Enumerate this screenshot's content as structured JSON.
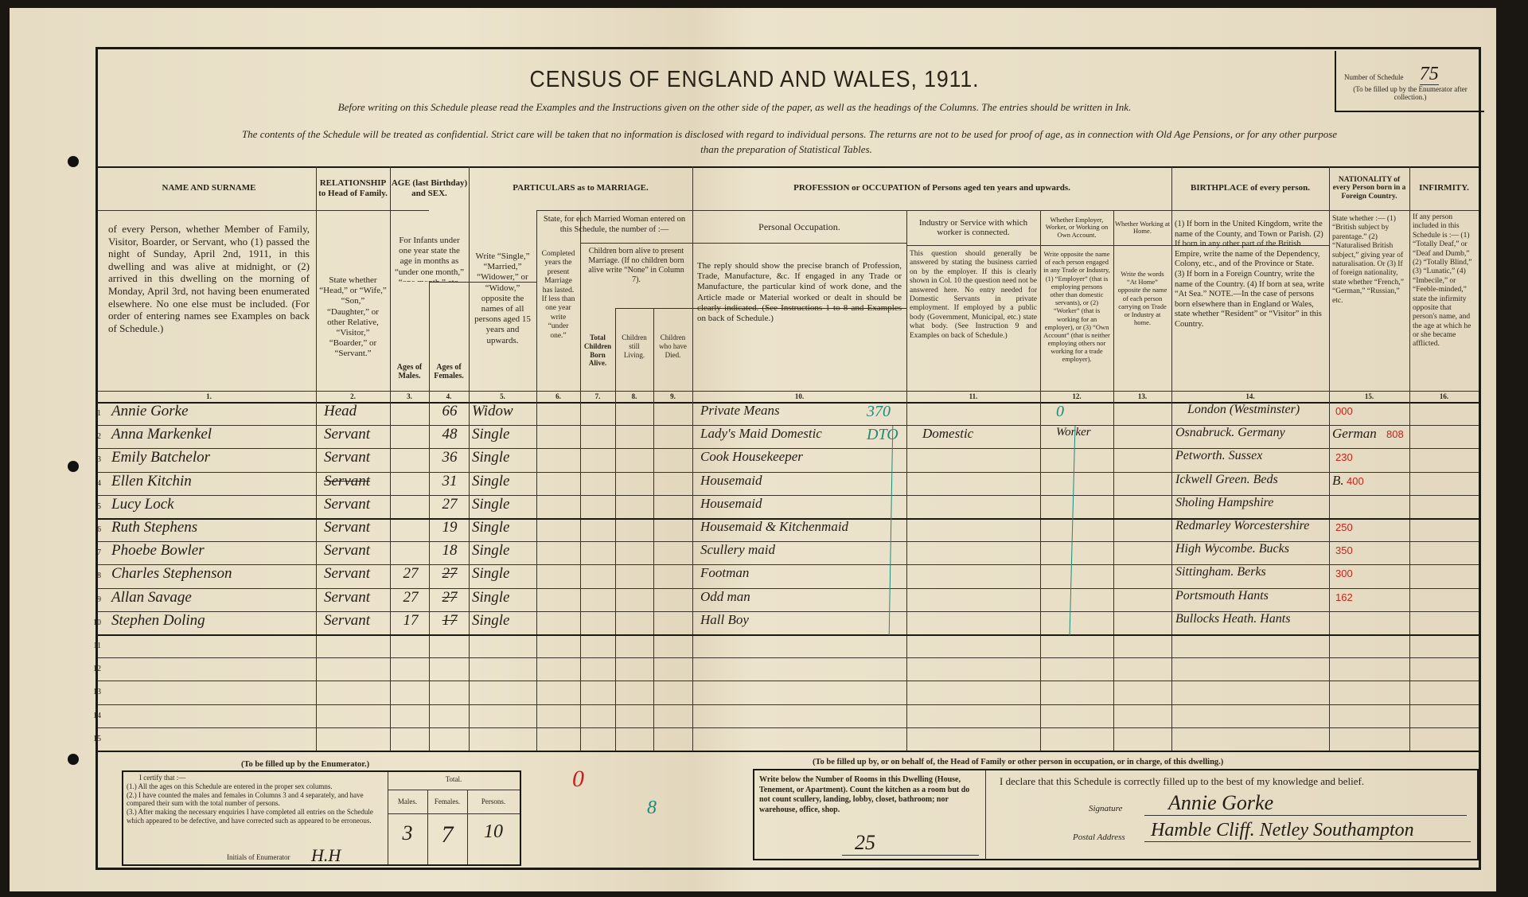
{
  "header": {
    "title": "CENSUS OF ENGLAND AND WALES, 1911.",
    "instruction_line": "Before writing on this Schedule please read the Examples and the Instructions given on the other side of the paper, as well as the headings of the Columns. The entries should be written in Ink.",
    "confidential_line_1": "The contents of the Schedule will be treated as confidential. Strict care will be taken that no information is disclosed with regard to individual persons. The returns are not to be used for proof of age, as in connection with Old Age Pensions, or for any other purpose",
    "confidential_line_2": "than the preparation of Statistical Tables.",
    "schedule_number_label": "Number of Schedule",
    "schedule_number": "75",
    "schedule_number_note": "(To be filled up by the Enumerator after collection.)"
  },
  "columns": {
    "name": {
      "head": "NAME AND SURNAME",
      "instr": "of every Person, whether Member of Family, Visitor, Boarder, or Servant, who (1) passed the night of Sunday, April 2nd, 1911, in this dwelling and was alive at midnight, or (2) arrived in this dwelling on the morning of Monday, April 3rd, not having been enumerated elsewhere. No one else must be included. (For order of entering names see Examples on back of Schedule.)",
      "num": "1."
    },
    "relationship": {
      "head": "RELATIONSHIP to Head of Family.",
      "instr": "State whether “Head,” or “Wife,” “Son,” “Daughter,” or other Relative, “Visitor,” “Boarder,” or “Servant.”",
      "num": "2."
    },
    "age": {
      "head": "AGE (last Birthday) and SEX.",
      "instr": "For Infants under one year state the age in months as “under one month,” “one month,” etc."
    },
    "males": {
      "head": "Ages of Males.",
      "num": "3."
    },
    "females": {
      "head": "Ages of Females.",
      "num": "4."
    },
    "marriage": {
      "head": "PARTICULARS as to MARRIAGE."
    },
    "condition": {
      "instr": "Write “Single,” “Married,” “Widower,” or “Widow,” opposite the names of all persons aged 15 years and upwards.",
      "num": "5."
    },
    "married_woman": {
      "instr": "State, for each Married Woman entered on this Schedule, the number of :—"
    },
    "years_married": {
      "instr": "Completed years the present Marriage has lasted. If less than one year write “under one.”",
      "num": "6."
    },
    "children_born": {
      "instr": "Children born alive to present Marriage. (If no children born alive write “None” in Column 7)."
    },
    "total_children": {
      "instr": "Total Children Born Alive.",
      "num": "7."
    },
    "children_living": {
      "instr": "Children still Living.",
      "num": "8."
    },
    "children_died": {
      "instr": "Children who have Died.",
      "num": "9."
    },
    "profession": {
      "head": "PROFESSION or OCCUPATION of Persons aged ten years and upwards."
    },
    "occupation": {
      "head": "Personal Occupation.",
      "instr": "The reply should show the precise branch of Profession, Trade, Manufacture, &c. If engaged in any Trade or Manufacture, the particular kind of work done, and the Article made or Material worked or dealt in should be clearly indicated. (See Instructions 1 to 8 and Examples on back of Schedule.)",
      "num": "10."
    },
    "industry": {
      "head": "Industry or Service with which worker is connected.",
      "instr": "This question should generally be answered by stating the business carried on by the employer. If this is clearly shown in Col. 10 the question need not be answered here. No entry needed for Domestic Servants in private employment. If employed by a public body (Government, Municipal, etc.) state what body. (See Instruction 9 and Examples on back of Schedule.)",
      "num": "11."
    },
    "employer": {
      "head": "Whether Employer, Worker, or Working on Own Account.",
      "instr": "Write opposite the name of each person engaged in any Trade or Industry, (1) “Employer” (that is employing persons other than domestic servants), or (2) “Worker” (that is working for an employer), or (3) “Own Account” (that is neither employing others nor working for a trade employer).",
      "num": "12."
    },
    "at_home": {
      "head": "Whether Working at Home.",
      "instr": "Write the words “At Home” opposite the name of each person carrying on Trade or Industry at home.",
      "num": "13."
    },
    "birthplace": {
      "head": "BIRTHPLACE of every person.",
      "instr": "(1) If born in the United Kingdom, write the name of the County, and Town or Parish. (2) If born in any other part of the British Empire, write the name of the Dependency, Colony, etc., and of the Province or State. (3) If born in a Foreign Country, write the name of the Country. (4) If born at sea, write “At Sea.” NOTE.—In the case of persons born elsewhere than in England or Wales, state whether “Resident” or “Visitor” in this Country.",
      "num": "14."
    },
    "nationality": {
      "head": "NATIONALITY of every Person born in a Foreign Country.",
      "instr": "State whether :— (1) “British subject by parentage.” (2) “Naturalised British subject,” giving year of naturalisation. Or (3) If of foreign nationality, state whether “French,” “German,” “Russian,” etc.",
      "num": "15."
    },
    "infirmity": {
      "head": "INFIRMITY.",
      "instr": "If any person included in this Schedule is :— (1) “Totally Deaf,” or “Deaf and Dumb,” (2) “Totally Blind,” (3) “Lunatic,” (4) “Imbecile,” or “Feeble-minded,” state the infirmity opposite that person's name, and the age at which he or she became afflicted.",
      "num": "16."
    }
  },
  "rows": [
    {
      "n": "1",
      "name": "Annie Gorke",
      "rel": "Head",
      "male": "",
      "female": "66",
      "cond": "Widow",
      "occ": "Private Means",
      "occ_code": "370",
      "ind": "",
      "emp": "0",
      "birth": "London (Westminster)",
      "nat": "",
      "code": "000"
    },
    {
      "n": "2",
      "name": "Anna Markenkel",
      "rel": "Servant",
      "male": "",
      "female": "48",
      "cond": "Single",
      "occ": "Lady's Maid Domestic",
      "occ_code": "DTO",
      "ind": "Domestic",
      "emp": "Worker",
      "birth": "Osnabruck. Germany",
      "nat": "German",
      "code": "808"
    },
    {
      "n": "3",
      "name": "Emily Batchelor",
      "rel": "Servant",
      "male": "",
      "female": "36",
      "cond": "Single",
      "occ": "Cook Housekeeper",
      "occ_code": "",
      "ind": "",
      "emp": "",
      "birth": "Petworth. Sussex",
      "nat": "",
      "code": "230"
    },
    {
      "n": "4",
      "name": "Ellen Kitchin",
      "rel": "Servant",
      "rel_struck": true,
      "male": "",
      "female": "31",
      "cond": "Single",
      "occ": "Housemaid",
      "occ_code": "",
      "ind": "",
      "emp": "",
      "birth": "Ickwell Green. Beds",
      "nat": "B.",
      "code": "400"
    },
    {
      "n": "5",
      "name": "Lucy Lock",
      "rel": "Servant",
      "male": "",
      "female": "27",
      "cond": "Single",
      "occ": "Housemaid",
      "occ_code": "",
      "ind": "",
      "emp": "",
      "birth": "Sholing Hampshire",
      "nat": "",
      "code": ""
    },
    {
      "n": "6",
      "name": "Ruth Stephens",
      "rel": "Servant",
      "male": "",
      "female": "19",
      "cond": "Single",
      "occ": "Housemaid & Kitchenmaid",
      "occ_code": "",
      "ind": "",
      "emp": "",
      "birth": "Redmarley Worcestershire",
      "nat": "",
      "code": "250"
    },
    {
      "n": "7",
      "name": "Phoebe Bowler",
      "rel": "Servant",
      "male": "",
      "female": "18",
      "cond": "Single",
      "occ": "Scullery maid",
      "occ_code": "",
      "ind": "",
      "emp": "",
      "birth": "High Wycombe. Bucks",
      "nat": "",
      "code": "350"
    },
    {
      "n": "8",
      "name": "Charles Stephenson",
      "rel": "Servant",
      "male": "27",
      "female": "27",
      "female_struck": true,
      "cond": "Single",
      "occ": "Footman",
      "occ_code": "",
      "ind": "",
      "emp": "",
      "birth": "Sittingham. Berks",
      "nat": "",
      "code": "300"
    },
    {
      "n": "9",
      "name": "Allan Savage",
      "rel": "Servant",
      "male": "27",
      "female": "27",
      "female_struck": true,
      "cond": "Single",
      "occ": "Odd man",
      "occ_code": "",
      "ind": "",
      "emp": "",
      "birth": "Portsmouth Hants",
      "nat": "",
      "code": "162"
    },
    {
      "n": "10",
      "name": "Stephen Doling",
      "rel": "Servant",
      "male": "17",
      "female": "17",
      "female_struck": true,
      "cond": "Single",
      "occ": "Hall Boy",
      "occ_code": "",
      "ind": "",
      "emp": "",
      "birth": "Bullocks Heath. Hants",
      "nat": "",
      "code": ""
    },
    {
      "n": "11"
    },
    {
      "n": "12"
    },
    {
      "n": "13"
    },
    {
      "n": "14"
    },
    {
      "n": "15"
    }
  ],
  "enumerator": {
    "heading": "(To be filled up by the Enumerator.)",
    "certify": "I certify that :—",
    "item1": "(1.) All the ages on this Schedule are entered in the proper sex columns.",
    "item2": "(2.) I have counted the males and females in Columns 3 and 4 separately, and have compared their sum with the total number of persons.",
    "item3": "(3.) After making the necessary enquiries I have completed all entries on the Schedule which appeared to be defective, and have corrected such as appeared to be erroneous.",
    "initials_label": "Initials of Enumerator",
    "initials": "H.H",
    "total_label": "Total.",
    "males_label": "Males.",
    "females_label": "Females.",
    "persons_label": "Persons.",
    "males": "3",
    "females": "7",
    "persons": "10",
    "red_mark": "0",
    "teal_mark": "8"
  },
  "household": {
    "heading": "(To be filled up by, or on behalf of, the Head of Family or other person in occupation, or in charge, of this dwelling.)",
    "rooms_instr": "Write below the Number of Rooms in this Dwelling (House, Tenement, or Apartment). Count the kitchen as a room but do not count scullery, landing, lobby, closet, bathroom; nor warehouse, office, shop.",
    "rooms": "25",
    "declaration": "I declare that this Schedule is correctly filled up to the best of my knowledge and belief.",
    "signature_label": "Signature",
    "signature": "Annie Gorke",
    "address_label": "Postal Address",
    "address": "Hamble Cliff. Netley Southampton"
  },
  "colors": {
    "paper": "#e8dec6",
    "ink": "#231c14",
    "red_pencil": "#c8221c",
    "teal_pencil": "#1f8a7a"
  }
}
